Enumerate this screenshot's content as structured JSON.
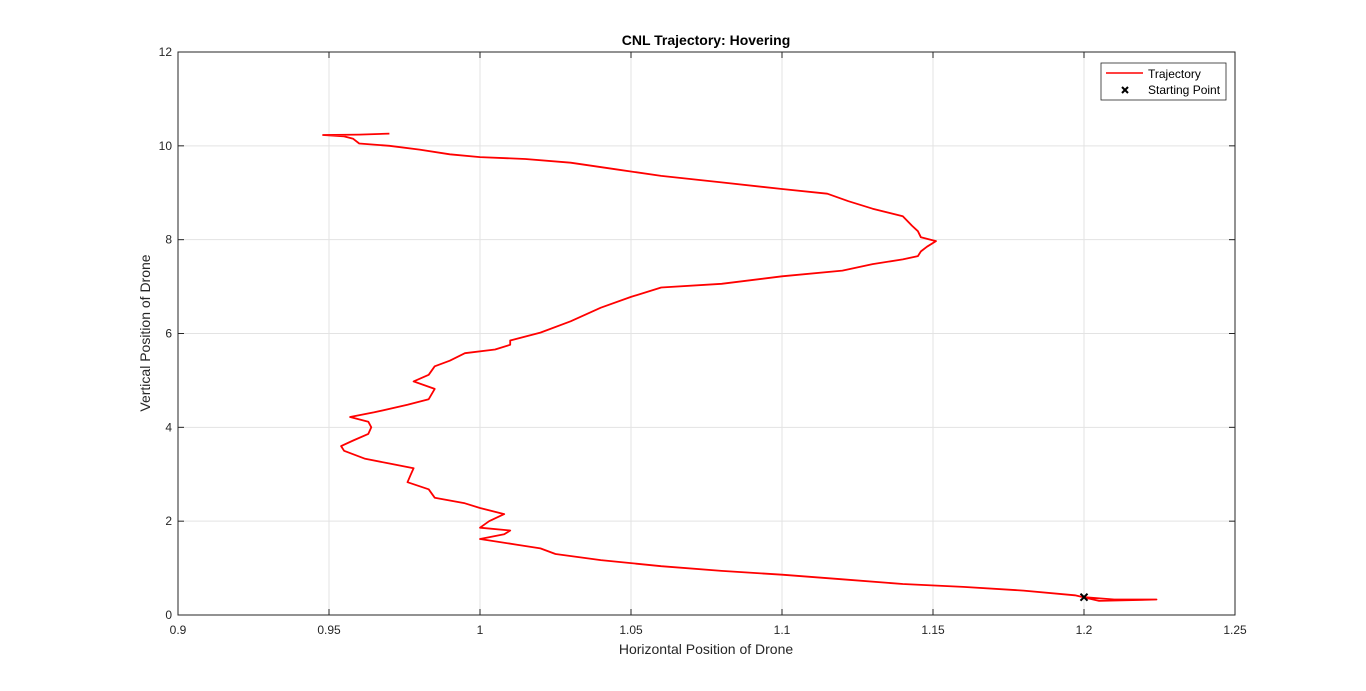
{
  "chart_data": {
    "type": "line",
    "title": "CNL Trajectory: Hovering",
    "xlabel": "Horizontal Position of Drone",
    "ylabel": "Vertical Position of Drone",
    "xlim": [
      0.9,
      1.25
    ],
    "ylim": [
      0,
      12
    ],
    "xticks": [
      "0.9",
      "0.95",
      "1",
      "1.05",
      "1.1",
      "1.15",
      "1.2",
      "1.25"
    ],
    "yticks": [
      "0",
      "2",
      "4",
      "6",
      "8",
      "10",
      "12"
    ],
    "grid": true,
    "legend_position": "top-right",
    "colors": {
      "trajectory": "#ff0000",
      "start": "#000000",
      "grid": "#e3e3e3",
      "axis": "#262626"
    },
    "series": [
      {
        "name": "Trajectory",
        "style": "line",
        "points": [
          [
            1.2,
            0.38
          ],
          [
            1.21,
            0.33
          ],
          [
            1.224,
            0.33
          ],
          [
            1.205,
            0.3
          ],
          [
            1.197,
            0.42
          ],
          [
            1.18,
            0.52
          ],
          [
            1.16,
            0.6
          ],
          [
            1.14,
            0.66
          ],
          [
            1.12,
            0.76
          ],
          [
            1.1,
            0.86
          ],
          [
            1.08,
            0.94
          ],
          [
            1.06,
            1.04
          ],
          [
            1.04,
            1.17
          ],
          [
            1.025,
            1.3
          ],
          [
            1.02,
            1.42
          ],
          [
            1.012,
            1.5
          ],
          [
            1.0,
            1.62
          ],
          [
            1.008,
            1.72
          ],
          [
            1.01,
            1.8
          ],
          [
            1.0,
            1.86
          ],
          [
            1.003,
            2.0
          ],
          [
            1.008,
            2.15
          ],
          [
            1.0,
            2.28
          ],
          [
            0.995,
            2.38
          ],
          [
            0.985,
            2.5
          ],
          [
            0.983,
            2.68
          ],
          [
            0.976,
            2.83
          ],
          [
            0.977,
            2.98
          ],
          [
            0.978,
            3.13
          ],
          [
            0.97,
            3.23
          ],
          [
            0.962,
            3.33
          ],
          [
            0.955,
            3.5
          ],
          [
            0.954,
            3.6
          ],
          [
            0.958,
            3.72
          ],
          [
            0.963,
            3.86
          ],
          [
            0.964,
            4.0
          ],
          [
            0.963,
            4.12
          ],
          [
            0.957,
            4.22
          ],
          [
            0.965,
            4.32
          ],
          [
            0.976,
            4.48
          ],
          [
            0.983,
            4.6
          ],
          [
            0.985,
            4.82
          ],
          [
            0.978,
            4.98
          ],
          [
            0.983,
            5.12
          ],
          [
            0.985,
            5.3
          ],
          [
            0.99,
            5.42
          ],
          [
            0.995,
            5.58
          ],
          [
            1.005,
            5.66
          ],
          [
            1.01,
            5.76
          ],
          [
            1.01,
            5.85
          ],
          [
            1.02,
            6.02
          ],
          [
            1.03,
            6.26
          ],
          [
            1.04,
            6.55
          ],
          [
            1.05,
            6.78
          ],
          [
            1.06,
            6.98
          ],
          [
            1.08,
            7.06
          ],
          [
            1.1,
            7.22
          ],
          [
            1.12,
            7.34
          ],
          [
            1.13,
            7.48
          ],
          [
            1.14,
            7.58
          ],
          [
            1.145,
            7.65
          ],
          [
            1.146,
            7.75
          ],
          [
            1.148,
            7.85
          ],
          [
            1.151,
            7.97
          ],
          [
            1.146,
            8.05
          ],
          [
            1.145,
            8.18
          ],
          [
            1.143,
            8.3
          ],
          [
            1.14,
            8.5
          ],
          [
            1.13,
            8.66
          ],
          [
            1.122,
            8.82
          ],
          [
            1.115,
            8.98
          ],
          [
            1.1,
            9.08
          ],
          [
            1.08,
            9.22
          ],
          [
            1.06,
            9.36
          ],
          [
            1.045,
            9.5
          ],
          [
            1.03,
            9.64
          ],
          [
            1.015,
            9.72
          ],
          [
            1.0,
            9.76
          ],
          [
            0.99,
            9.82
          ],
          [
            0.98,
            9.92
          ],
          [
            0.97,
            10.0
          ],
          [
            0.96,
            10.05
          ],
          [
            0.958,
            10.15
          ],
          [
            0.955,
            10.2
          ],
          [
            0.948,
            10.23
          ],
          [
            0.96,
            10.24
          ],
          [
            0.97,
            10.26
          ]
        ]
      },
      {
        "name": "Starting Point",
        "style": "marker",
        "points": [
          [
            1.2,
            0.38
          ]
        ]
      }
    ]
  }
}
